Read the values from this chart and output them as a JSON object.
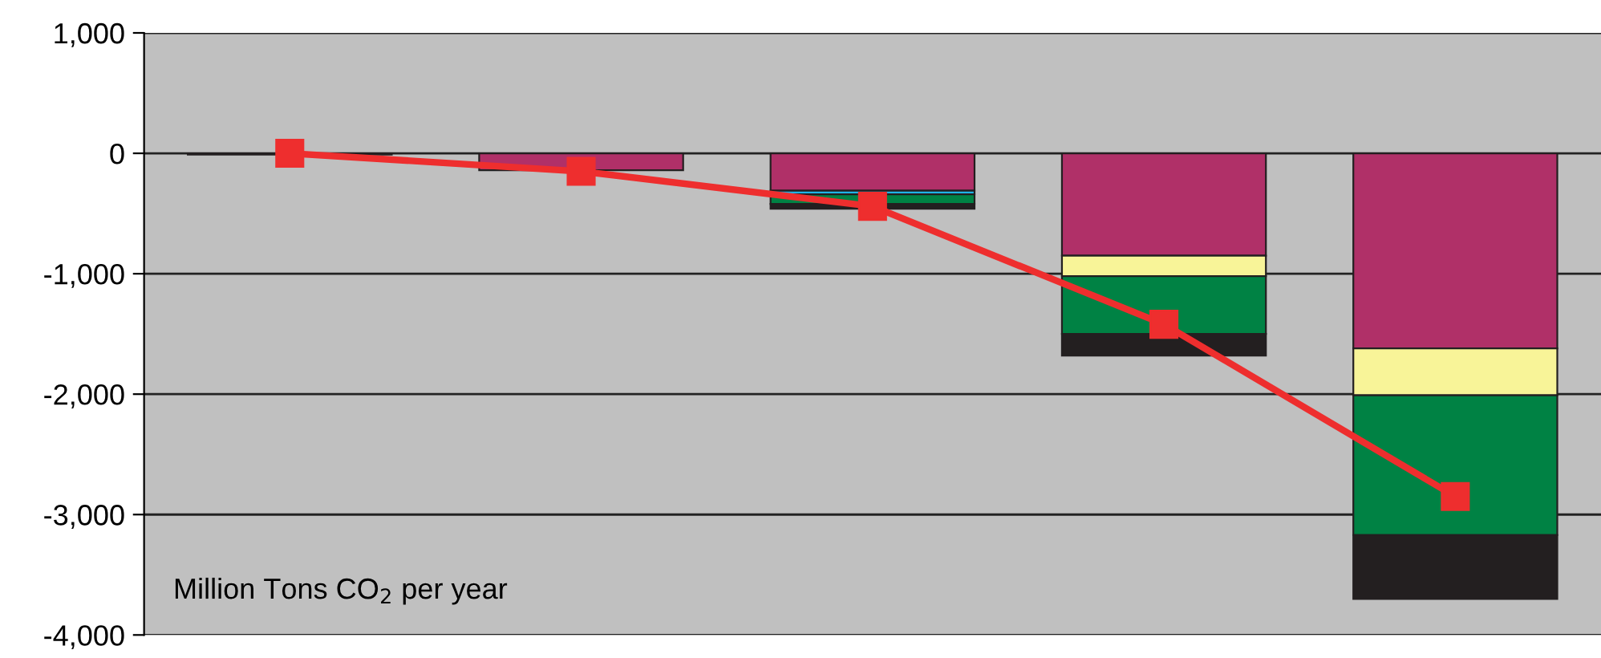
{
  "chart_data": {
    "type": "bar",
    "stacked": true,
    "categories": [
      null,
      null,
      null,
      null,
      null
    ],
    "series": [
      {
        "color": "#b03068",
        "values": [
          -10,
          -140,
          -310,
          -850,
          -1620
        ]
      },
      {
        "color": "#f8f498",
        "values": [
          null,
          null,
          null,
          -170,
          -390
        ]
      },
      {
        "color": "#1eb4e6",
        "values": [
          null,
          null,
          -30,
          null,
          null
        ]
      },
      {
        "color": "#008244",
        "values": [
          null,
          null,
          -80,
          -480,
          -1160
        ]
      },
      {
        "color": "#231f20",
        "values": [
          null,
          null,
          -40,
          -180,
          -530
        ]
      },
      {
        "type": "line",
        "color": "#ee2e2e",
        "marker": "square",
        "line_style": "solid",
        "values": [
          0,
          -150,
          -440,
          -1420,
          -2850
        ]
      }
    ],
    "ylim": [
      -4000,
      1000
    ],
    "yticks": [
      {
        "value": -4000,
        "label": "-4,000"
      },
      {
        "value": -3000,
        "label": "-3,000"
      },
      {
        "value": -2000,
        "label": "-2,000"
      },
      {
        "value": -1000,
        "label": "-1,000"
      },
      0,
      {
        "value": 1000,
        "label": "1,000"
      }
    ],
    "grid": "y",
    "legend": false,
    "annotations": [
      "Million Tons CO$_{2}$ per year"
    ]
  }
}
